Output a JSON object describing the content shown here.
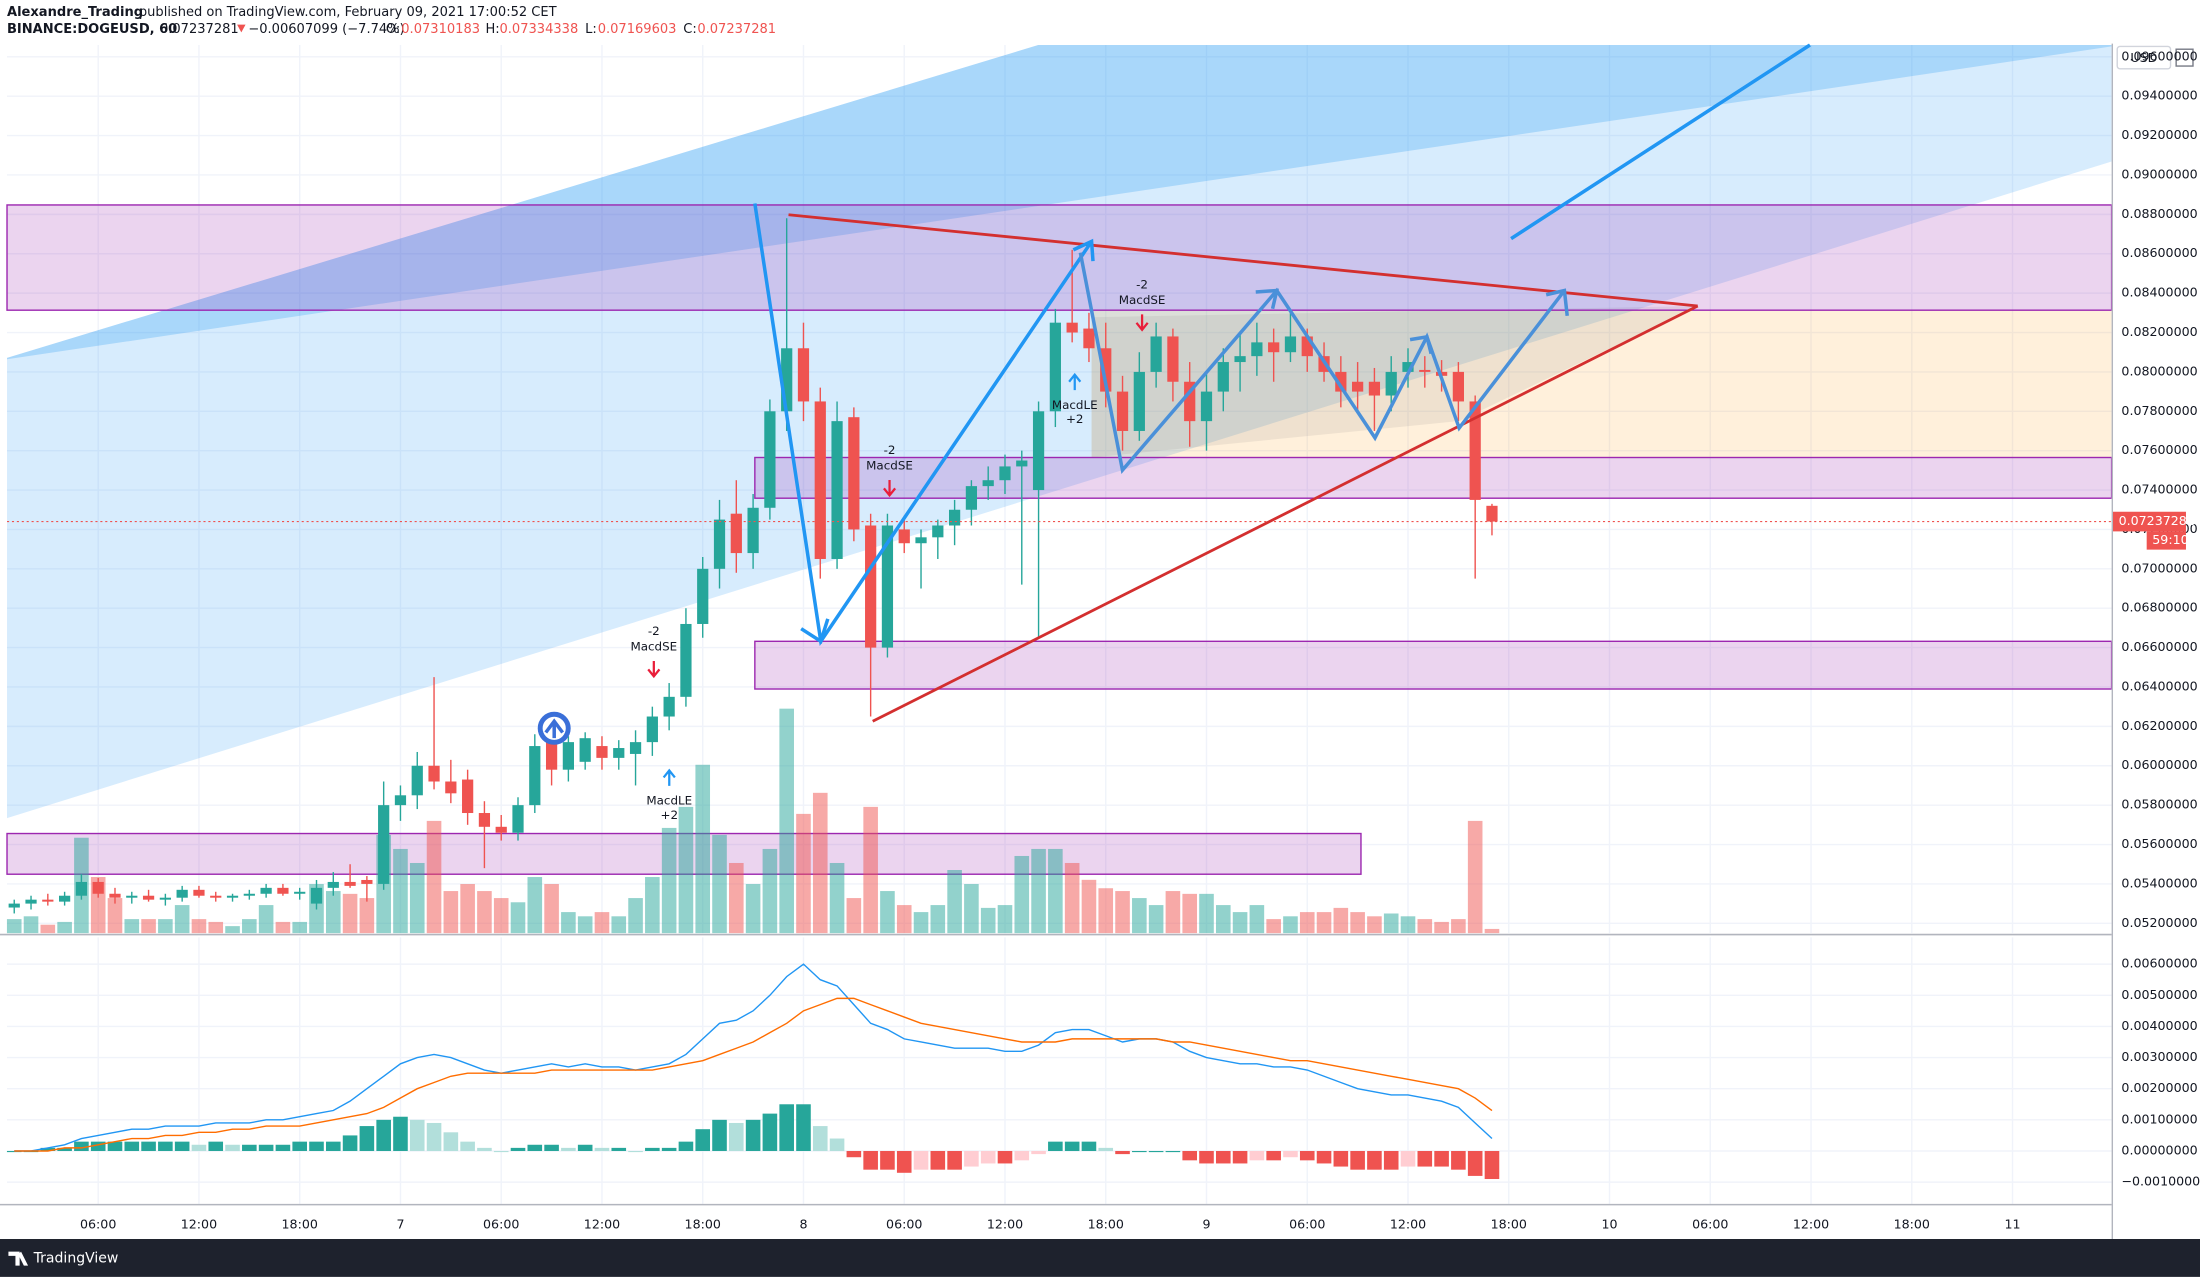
{
  "header": {
    "author": "Alexandre_Trading",
    "published": "published on TradingView.com, February 09, 2021 17:00:52 CET",
    "symbol": "BINANCE:DOGEUSD, 60",
    "price": "0.07237281",
    "change": "−0.00607099 (−7.74%)",
    "open_label": "O:",
    "open": "0.07310183",
    "high_label": "H:",
    "high": "0.07334338",
    "low_label": "L:",
    "low": "0.07169603",
    "close_label": "C:",
    "close": "0.07237281"
  },
  "annotations": [
    "-2",
    "MacdSE",
    "MacdLE",
    "+2",
    "-2",
    "MacdSE",
    "MacdLE",
    "+2",
    "-2",
    "MacdSE"
  ],
  "footer": {
    "brand": "TradingView"
  },
  "chart_data": [
    {
      "type": "candlestick",
      "currency": "USD",
      "last_price_label": "0.07237281",
      "countdown": "59:10",
      "up_color": "#26a69a",
      "down_color": "#ef5350",
      "grid": true,
      "x": [
        1,
        2,
        3,
        4,
        5,
        6,
        7,
        8,
        9,
        10,
        11,
        12,
        13,
        14,
        15,
        16,
        17,
        18,
        19,
        20,
        21,
        22,
        23,
        24,
        25,
        26,
        27,
        28,
        29,
        30,
        31,
        32,
        33,
        34,
        35,
        36,
        37,
        38,
        39,
        40,
        41,
        42,
        43,
        44,
        45,
        46,
        47,
        48,
        49,
        50,
        51,
        52,
        53,
        54,
        55,
        56,
        57,
        58,
        59,
        60,
        61,
        62,
        63,
        64,
        65,
        66,
        67,
        68,
        69,
        70,
        71,
        72,
        73,
        74,
        75,
        76,
        77,
        78,
        79,
        80,
        81,
        82,
        83,
        84,
        85,
        86,
        87,
        88,
        89
      ],
      "xlim": [
        0.57,
        125.9
      ],
      "xticks": [
        {
          "value": 6,
          "label": "06:00"
        },
        {
          "value": 12,
          "label": "12:00"
        },
        {
          "value": 18,
          "label": "18:00"
        },
        {
          "value": 24,
          "label": "7"
        },
        {
          "value": 30,
          "label": "06:00"
        },
        {
          "value": 36,
          "label": "12:00"
        },
        {
          "value": 42,
          "label": "18:00"
        },
        {
          "value": 48,
          "label": "8"
        },
        {
          "value": 54,
          "label": "06:00"
        },
        {
          "value": 60,
          "label": "12:00"
        },
        {
          "value": 66,
          "label": "18:00"
        },
        {
          "value": 72,
          "label": "9"
        },
        {
          "value": 78,
          "label": "06:00"
        },
        {
          "value": 84,
          "label": "12:00"
        },
        {
          "value": 90,
          "label": "18:00"
        },
        {
          "value": 96,
          "label": "10"
        },
        {
          "value": 102,
          "label": "06:00"
        },
        {
          "value": 108,
          "label": "12:00"
        },
        {
          "value": 114,
          "label": "18:00"
        },
        {
          "value": 120,
          "label": "11"
        }
      ],
      "ylim": [
        0.0515,
        0.0966
      ],
      "yticks": [
        {
          "value": 0.052,
          "label": "0.05200000"
        },
        {
          "value": 0.054,
          "label": "0.05400000"
        },
        {
          "value": 0.056,
          "label": "0.05600000"
        },
        {
          "value": 0.058,
          "label": "0.05800000"
        },
        {
          "value": 0.06,
          "label": "0.06000000"
        },
        {
          "value": 0.062,
          "label": "0.06200000"
        },
        {
          "value": 0.064,
          "label": "0.06400000"
        },
        {
          "value": 0.066,
          "label": "0.06600000"
        },
        {
          "value": 0.068,
          "label": "0.06800000"
        },
        {
          "value": 0.07,
          "label": "0.07000000"
        },
        {
          "value": 0.072,
          "label": "0.07200000"
        },
        {
          "value": 0.074,
          "label": "0.07400000"
        },
        {
          "value": 0.076,
          "label": "0.07600000"
        },
        {
          "value": 0.078,
          "label": "0.07800000"
        },
        {
          "value": 0.08,
          "label": "0.08000000"
        },
        {
          "value": 0.082,
          "label": "0.08200000"
        },
        {
          "value": 0.084,
          "label": "0.08400000"
        },
        {
          "value": 0.086,
          "label": "0.08600000"
        },
        {
          "value": 0.088,
          "label": "0.08800000"
        },
        {
          "value": 0.09,
          "label": "0.09000000"
        },
        {
          "value": 0.092,
          "label": "0.09200000"
        },
        {
          "value": 0.094,
          "label": "0.09400000"
        },
        {
          "value": 0.096,
          "label": "0.09600000"
        }
      ],
      "open": [
        0.0528,
        0.053,
        0.0532,
        0.0531,
        0.0534,
        0.0541,
        0.0535,
        0.0533,
        0.0534,
        0.0532,
        0.0533,
        0.0537,
        0.0534,
        0.0533,
        0.0534,
        0.0535,
        0.0538,
        0.0535,
        0.053,
        0.0538,
        0.0541,
        0.0542,
        0.054,
        0.058,
        0.0585,
        0.06,
        0.0592,
        0.0593,
        0.0576,
        0.0569,
        0.0566,
        0.058,
        0.0612,
        0.0598,
        0.0602,
        0.061,
        0.0604,
        0.0606,
        0.0612,
        0.0625,
        0.0635,
        0.0672,
        0.07,
        0.0728,
        0.0708,
        0.0731,
        0.078,
        0.0812,
        0.0785,
        0.0705,
        0.0777,
        0.0722,
        0.066,
        0.072,
        0.0713,
        0.0716,
        0.0722,
        0.073,
        0.0742,
        0.0745,
        0.0752,
        0.074,
        0.078,
        0.0825,
        0.0822,
        0.0812,
        0.079,
        0.077,
        0.08,
        0.0818,
        0.0795,
        0.0775,
        0.079,
        0.0805,
        0.0808,
        0.0815,
        0.081,
        0.0818,
        0.0808,
        0.08,
        0.0795,
        0.0795,
        0.0788,
        0.08,
        0.0801,
        0.08,
        0.08,
        0.0785,
        0.0732
      ],
      "high": [
        0.0532,
        0.0534,
        0.0535,
        0.0536,
        0.0545,
        0.0543,
        0.0538,
        0.0536,
        0.0537,
        0.0535,
        0.0539,
        0.0539,
        0.0536,
        0.0535,
        0.0537,
        0.054,
        0.054,
        0.0538,
        0.0542,
        0.0546,
        0.055,
        0.0544,
        0.0592,
        0.059,
        0.0607,
        0.0645,
        0.0603,
        0.0598,
        0.0582,
        0.0575,
        0.0584,
        0.0616,
        0.0618,
        0.0615,
        0.0617,
        0.0615,
        0.0613,
        0.0618,
        0.063,
        0.0642,
        0.068,
        0.0706,
        0.0735,
        0.0745,
        0.0738,
        0.0786,
        0.0878,
        0.0825,
        0.0792,
        0.0785,
        0.0782,
        0.0728,
        0.0728,
        0.0727,
        0.072,
        0.0725,
        0.0735,
        0.0745,
        0.0752,
        0.0758,
        0.076,
        0.0785,
        0.0832,
        0.0862,
        0.083,
        0.0825,
        0.0798,
        0.081,
        0.0825,
        0.0822,
        0.0805,
        0.08,
        0.0812,
        0.082,
        0.0825,
        0.0822,
        0.0832,
        0.0822,
        0.0815,
        0.0808,
        0.0805,
        0.0802,
        0.0808,
        0.0812,
        0.0808,
        0.0806,
        0.0805,
        0.0788,
        0.0733
      ],
      "low": [
        0.0525,
        0.0527,
        0.0529,
        0.0529,
        0.0532,
        0.0533,
        0.053,
        0.053,
        0.0531,
        0.0529,
        0.0531,
        0.0533,
        0.0531,
        0.0531,
        0.0532,
        0.0533,
        0.0534,
        0.0532,
        0.0527,
        0.0534,
        0.0538,
        0.0531,
        0.0537,
        0.0572,
        0.0578,
        0.0588,
        0.0581,
        0.057,
        0.0548,
        0.0562,
        0.0562,
        0.0576,
        0.059,
        0.0592,
        0.0598,
        0.0598,
        0.0598,
        0.059,
        0.0605,
        0.0618,
        0.063,
        0.0665,
        0.069,
        0.0698,
        0.07,
        0.0725,
        0.077,
        0.0775,
        0.0695,
        0.07,
        0.0714,
        0.0625,
        0.0655,
        0.0708,
        0.069,
        0.0705,
        0.0712,
        0.0722,
        0.0735,
        0.0738,
        0.0692,
        0.0665,
        0.0772,
        0.0815,
        0.0805,
        0.0782,
        0.076,
        0.0765,
        0.0792,
        0.0785,
        0.0762,
        0.076,
        0.078,
        0.079,
        0.0798,
        0.0795,
        0.0805,
        0.08,
        0.0795,
        0.0782,
        0.078,
        0.077,
        0.078,
        0.0792,
        0.0792,
        0.079,
        0.0775,
        0.0695,
        0.0717
      ],
      "close": [
        0.053,
        0.0532,
        0.0531,
        0.0534,
        0.0541,
        0.0535,
        0.0533,
        0.0534,
        0.0532,
        0.0533,
        0.0537,
        0.0534,
        0.0533,
        0.0534,
        0.0535,
        0.0538,
        0.0535,
        0.0536,
        0.0538,
        0.0541,
        0.0539,
        0.054,
        0.058,
        0.0585,
        0.06,
        0.0592,
        0.0586,
        0.0576,
        0.0569,
        0.0566,
        0.058,
        0.061,
        0.0598,
        0.0612,
        0.0614,
        0.0604,
        0.0609,
        0.0612,
        0.0625,
        0.0635,
        0.0672,
        0.07,
        0.0725,
        0.0708,
        0.0731,
        0.078,
        0.0812,
        0.0785,
        0.0705,
        0.0775,
        0.072,
        0.066,
        0.0722,
        0.0713,
        0.0716,
        0.0722,
        0.073,
        0.0742,
        0.0745,
        0.0752,
        0.0755,
        0.078,
        0.0825,
        0.082,
        0.0812,
        0.079,
        0.077,
        0.08,
        0.0818,
        0.0795,
        0.0775,
        0.079,
        0.0805,
        0.0808,
        0.0815,
        0.081,
        0.0818,
        0.0808,
        0.08,
        0.079,
        0.079,
        0.0788,
        0.08,
        0.0805,
        0.08,
        0.0798,
        0.0785,
        0.0735,
        0.0724
      ],
      "volume": [
        10,
        12,
        6,
        8,
        68,
        40,
        25,
        10,
        10,
        10,
        20,
        10,
        8,
        5,
        10,
        20,
        8,
        8,
        35,
        30,
        28,
        25,
        70,
        60,
        50,
        80,
        30,
        35,
        30,
        25,
        22,
        40,
        35,
        15,
        12,
        15,
        12,
        25,
        40,
        75,
        90,
        120,
        70,
        50,
        35,
        60,
        160,
        85,
        100,
        50,
        25,
        90,
        30,
        20,
        15,
        20,
        45,
        35,
        18,
        20,
        55,
        60,
        60,
        50,
        38,
        32,
        30,
        25,
        20,
        30,
        28,
        28,
        20,
        15,
        20,
        10,
        12,
        15,
        15,
        18,
        15,
        12,
        14,
        12,
        10,
        8,
        10,
        80,
        3
      ]
    },
    {
      "type": "macd",
      "ylim": [
        -0.0017,
        0.00686
      ],
      "yticks": [
        {
          "value": -0.001,
          "label": "−0.00100000"
        },
        {
          "value": 0,
          "label": "0.00000000"
        },
        {
          "value": 0.001,
          "label": "0.00100000"
        },
        {
          "value": 0.002,
          "label": "0.00200000"
        },
        {
          "value": 0.003,
          "label": "0.00300000"
        },
        {
          "value": 0.004,
          "label": "0.00400000"
        },
        {
          "value": 0.005,
          "label": "0.00500000"
        },
        {
          "value": 0.006,
          "label": "0.00600000"
        }
      ],
      "series": [
        {
          "color": "#2196f3",
          "values": [
            0,
            0,
            0.0001,
            0.0002,
            0.0004,
            0.0005,
            0.0006,
            0.0007,
            0.0007,
            0.0008,
            0.0008,
            0.0008,
            0.0009,
            0.0009,
            0.0009,
            0.001,
            0.001,
            0.0011,
            0.0012,
            0.0013,
            0.0016,
            0.002,
            0.0024,
            0.0028,
            0.003,
            0.0031,
            0.003,
            0.0028,
            0.0026,
            0.0025,
            0.0026,
            0.0027,
            0.0028,
            0.0027,
            0.0028,
            0.0027,
            0.0027,
            0.0026,
            0.0027,
            0.0028,
            0.0031,
            0.0036,
            0.0041,
            0.0042,
            0.0045,
            0.005,
            0.0056,
            0.006,
            0.0055,
            0.0053,
            0.0047,
            0.0041,
            0.0039,
            0.0036,
            0.0035,
            0.0034,
            0.0033,
            0.0033,
            0.0033,
            0.0032,
            0.0032,
            0.0034,
            0.0038,
            0.0039,
            0.0039,
            0.0037,
            0.0035,
            0.0036,
            0.0036,
            0.0035,
            0.0032,
            0.003,
            0.0029,
            0.0028,
            0.0028,
            0.0027,
            0.0027,
            0.0026,
            0.0024,
            0.0022,
            0.002,
            0.0019,
            0.0018,
            0.0018,
            0.0017,
            0.0016,
            0.0014,
            0.0009,
            0.0004
          ]
        },
        {
          "color": "#ff6d00",
          "values": [
            0,
            0,
            0,
            0.0001,
            0.0001,
            0.0002,
            0.0003,
            0.0004,
            0.0004,
            0.0005,
            0.0005,
            0.0006,
            0.0006,
            0.0007,
            0.0007,
            0.0008,
            0.0008,
            0.0008,
            0.0009,
            0.001,
            0.0011,
            0.0012,
            0.0014,
            0.0017,
            0.002,
            0.0022,
            0.0024,
            0.0025,
            0.0025,
            0.0025,
            0.0025,
            0.0025,
            0.0026,
            0.0026,
            0.0026,
            0.0026,
            0.0026,
            0.0026,
            0.0026,
            0.0027,
            0.0028,
            0.0029,
            0.0031,
            0.0033,
            0.0035,
            0.0038,
            0.0041,
            0.0045,
            0.0047,
            0.0049,
            0.0049,
            0.0047,
            0.0045,
            0.0043,
            0.0041,
            0.004,
            0.0039,
            0.0038,
            0.0037,
            0.0036,
            0.0035,
            0.0035,
            0.0035,
            0.0036,
            0.0036,
            0.0036,
            0.0036,
            0.0036,
            0.0036,
            0.0035,
            0.0035,
            0.0034,
            0.0033,
            0.0032,
            0.0031,
            0.003,
            0.0029,
            0.0029,
            0.0028,
            0.0027,
            0.0026,
            0.0025,
            0.0024,
            0.0023,
            0.0022,
            0.0021,
            0.002,
            0.0017,
            0.0013
          ]
        }
      ],
      "histogram": [
        0,
        0,
        0.0001,
        0.0001,
        0.0003,
        0.0003,
        0.0003,
        0.0003,
        0.0003,
        0.0003,
        0.0003,
        0.0002,
        0.0003,
        0.0002,
        0.0002,
        0.0002,
        0.0002,
        0.0003,
        0.0003,
        0.0003,
        0.0005,
        0.0008,
        0.001,
        0.0011,
        0.001,
        0.0009,
        0.0006,
        0.0003,
        0.0001,
        0,
        0.0001,
        0.0002,
        0.0002,
        0.0001,
        0.0002,
        0.0001,
        0.0001,
        0,
        0.0001,
        0.0001,
        0.0003,
        0.0007,
        0.001,
        0.0009,
        0.001,
        0.0012,
        0.0015,
        0.0015,
        0.0008,
        0.0004,
        -0.0002,
        -0.0006,
        -0.0006,
        -0.0007,
        -0.0006,
        -0.0006,
        -0.0006,
        -0.0005,
        -0.0004,
        -0.0004,
        -0.0003,
        -0.0001,
        0.0003,
        0.0003,
        0.0003,
        0.0001,
        -0.0001,
        0,
        0,
        0,
        -0.0003,
        -0.0004,
        -0.0004,
        -0.0004,
        -0.0003,
        -0.0003,
        -0.0002,
        -0.0003,
        -0.0004,
        -0.0005,
        -0.0006,
        -0.0006,
        -0.0006,
        -0.0005,
        -0.0005,
        -0.0005,
        -0.0006,
        -0.0008,
        -0.0009
      ]
    }
  ]
}
